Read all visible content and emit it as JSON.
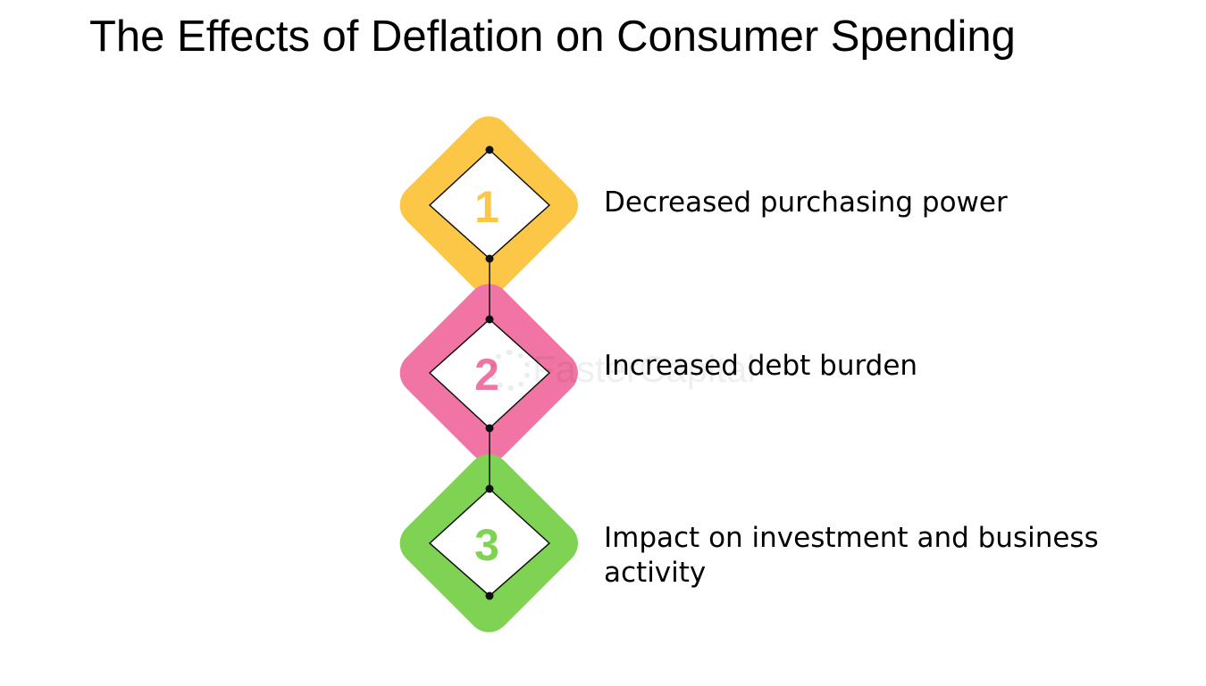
{
  "title": "The Effects of Deflation on Consumer Spending",
  "watermark": "FasterCapital",
  "steps": [
    {
      "number": "1",
      "label": "Decreased purchasing power",
      "color": "#FCC747"
    },
    {
      "number": "2",
      "label": "Increased debt burden",
      "color": "#F175A4"
    },
    {
      "number": "3",
      "label": "Impact on investment and business activity",
      "color": "#7ED353"
    }
  ]
}
